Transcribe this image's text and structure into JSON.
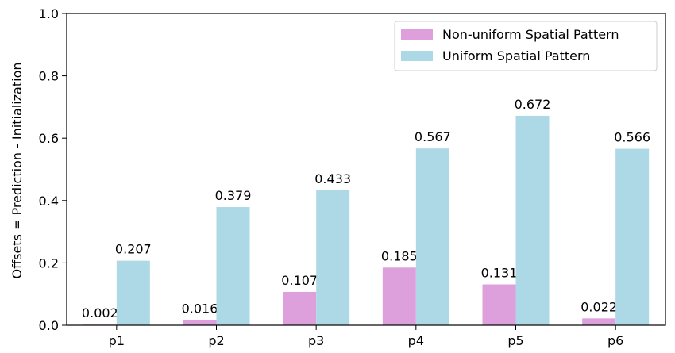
{
  "chart_data": {
    "type": "bar",
    "title": "",
    "xlabel": "",
    "ylabel": "Offsets = Prediction - Initialization",
    "categories": [
      "p1",
      "p2",
      "p3",
      "p4",
      "p5",
      "p6"
    ],
    "ylim": [
      0.0,
      1.0
    ],
    "yticks": [
      "0.0",
      "0.2",
      "0.4",
      "0.6",
      "0.8",
      "1.0"
    ],
    "grid": false,
    "legend_position": "top-right",
    "series": [
      {
        "name": "Non-uniform Spatial Pattern",
        "color": "#dda0dd",
        "values": [
          0.002,
          0.016,
          0.107,
          0.185,
          0.131,
          0.022
        ],
        "labels": [
          "0.002",
          "0.016",
          "0.107",
          "0.185",
          "0.131",
          "0.022"
        ]
      },
      {
        "name": "Uniform Spatial Pattern",
        "color": "#add8e6",
        "values": [
          0.207,
          0.379,
          0.433,
          0.567,
          0.672,
          0.566
        ],
        "labels": [
          "0.207",
          "0.379",
          "0.433",
          "0.567",
          "0.672",
          "0.566"
        ]
      }
    ]
  }
}
